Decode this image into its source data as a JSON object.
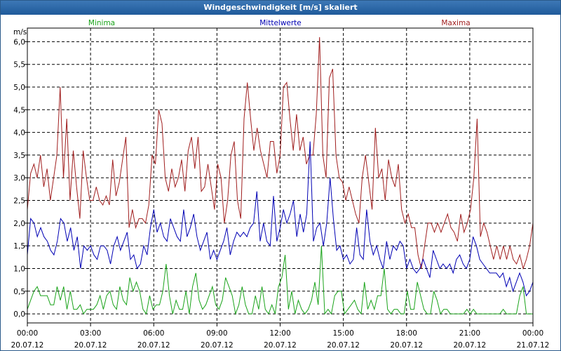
{
  "window": {
    "title": "Windgeschwindigkeit [m/s] skaliert"
  },
  "colors": {
    "minima": "#1aa31a",
    "mittelwerte": "#0000b4",
    "maxima": "#a01e1e",
    "grid": "#000000",
    "titlebar": "#2b68a8"
  },
  "chart_data": {
    "type": "line",
    "title": "Windgeschwindigkeit [m/s] skaliert",
    "ylabel": "m/s",
    "xlabel": "",
    "ylim": [
      -0.2,
      6.3
    ],
    "xlim": [
      0,
      24
    ],
    "grid": true,
    "yticks": [
      {
        "value": 0.0,
        "label": "0,0"
      },
      {
        "value": 0.5,
        "label": "0,5"
      },
      {
        "value": 1.0,
        "label": "1,0"
      },
      {
        "value": 1.5,
        "label": "1,5"
      },
      {
        "value": 2.0,
        "label": "2,0"
      },
      {
        "value": 2.5,
        "label": "2,5"
      },
      {
        "value": 3.0,
        "label": "3,0"
      },
      {
        "value": 3.5,
        "label": "3,5"
      },
      {
        "value": 4.0,
        "label": "4,0"
      },
      {
        "value": 4.5,
        "label": "4,5"
      },
      {
        "value": 5.0,
        "label": "5,0"
      },
      {
        "value": 5.5,
        "label": "5,5"
      },
      {
        "value": 6.0,
        "label": "6,0"
      }
    ],
    "xticks": [
      {
        "value": 0,
        "time": "00:00",
        "date": "20.07.12"
      },
      {
        "value": 3,
        "time": "03:00",
        "date": "20.07.12"
      },
      {
        "value": 6,
        "time": "06:00",
        "date": "20.07.12"
      },
      {
        "value": 9,
        "time": "09:00",
        "date": "20.07.12"
      },
      {
        "value": 12,
        "time": "12:00",
        "date": "20.07.12"
      },
      {
        "value": 15,
        "time": "15:00",
        "date": "20.07.12"
      },
      {
        "value": 18,
        "time": "18:00",
        "date": "20.07.12"
      },
      {
        "value": 21,
        "time": "21:00",
        "date": "20.07.12"
      },
      {
        "value": 24,
        "time": "00:00",
        "date": "21.07.12"
      }
    ],
    "legend": [
      {
        "key": "minima",
        "label": "Minima"
      },
      {
        "key": "mittelwerte",
        "label": "Mittelwerte"
      },
      {
        "key": "maxima",
        "label": "Maxima"
      }
    ],
    "x_step_hours": 0.1667,
    "series": [
      {
        "key": "maxima",
        "name": "Maxima",
        "values": [
          2.3,
          3.1,
          3.3,
          3.0,
          3.5,
          2.8,
          3.2,
          2.5,
          3.0,
          3.5,
          5.0,
          3.0,
          4.3,
          2.5,
          3.6,
          2.8,
          2.1,
          3.6,
          3.0,
          2.5,
          2.5,
          2.8,
          2.5,
          2.4,
          2.6,
          2.4,
          3.4,
          2.6,
          2.9,
          3.4,
          3.9,
          1.9,
          2.3,
          1.9,
          2.1,
          2.1,
          2.0,
          2.4,
          3.5,
          3.3,
          4.5,
          4.2,
          3.0,
          2.7,
          3.2,
          2.8,
          3.0,
          3.4,
          2.7,
          3.6,
          3.9,
          3.2,
          3.9,
          2.7,
          2.8,
          3.3,
          2.8,
          2.3,
          3.3,
          3.0,
          2.0,
          2.5,
          3.5,
          3.8,
          2.5,
          2.1,
          4.3,
          5.1,
          4.3,
          3.6,
          4.1,
          3.6,
          3.3,
          3.0,
          3.8,
          3.8,
          3.1,
          3.5,
          5.0,
          5.1,
          4.3,
          3.6,
          4.4,
          3.6,
          3.9,
          3.3,
          3.5,
          3.5,
          4.4,
          6.1,
          3.5,
          3.0,
          5.2,
          5.4,
          3.5,
          3.0,
          2.9,
          2.5,
          2.8,
          2.5,
          2.2,
          2.0,
          3.0,
          3.5,
          2.9,
          2.3,
          4.1,
          3.0,
          3.2,
          2.5,
          3.4,
          3.0,
          2.8,
          3.3,
          2.3,
          2.0,
          2.2,
          1.9,
          1.9,
          1.3,
          1.0,
          1.5,
          2.0,
          2.0,
          1.8,
          2.0,
          1.8,
          2.0,
          2.2,
          1.9,
          1.8,
          1.6,
          2.2,
          1.8,
          2.0,
          2.3,
          3.0,
          4.3,
          1.7,
          2.0,
          1.8,
          1.5,
          1.2,
          1.5,
          1.2,
          1.5,
          1.2,
          1.5,
          1.2,
          1.1,
          1.3,
          1.0,
          1.2,
          1.5,
          2.0
        ]
      },
      {
        "key": "mittelwerte",
        "name": "Mittelwerte",
        "values": [
          1.3,
          2.1,
          2.0,
          1.7,
          1.9,
          1.7,
          1.6,
          1.4,
          1.3,
          1.6,
          2.1,
          2.0,
          1.6,
          1.9,
          1.4,
          1.7,
          1.0,
          1.5,
          1.4,
          1.5,
          1.3,
          1.2,
          1.5,
          1.5,
          1.4,
          1.1,
          1.5,
          1.7,
          1.4,
          1.6,
          1.8,
          1.2,
          1.3,
          1.0,
          1.1,
          1.5,
          1.3,
          1.9,
          2.3,
          1.8,
          2.0,
          1.7,
          1.6,
          2.1,
          1.9,
          1.7,
          1.6,
          2.3,
          1.7,
          1.9,
          2.2,
          1.7,
          1.4,
          1.6,
          1.8,
          1.2,
          1.4,
          1.2,
          1.4,
          1.6,
          1.9,
          1.3,
          1.6,
          1.8,
          1.7,
          1.8,
          1.7,
          1.9,
          2.0,
          2.7,
          1.6,
          2.0,
          1.6,
          1.5,
          2.6,
          1.6,
          1.9,
          2.3,
          2.0,
          2.2,
          2.5,
          1.7,
          2.2,
          1.8,
          2.2,
          3.8,
          1.6,
          1.9,
          2.0,
          1.5,
          2.0,
          3.0,
          2.1,
          1.4,
          1.5,
          1.2,
          1.3,
          1.1,
          1.2,
          1.9,
          1.3,
          1.2,
          2.3,
          1.6,
          1.3,
          1.5,
          1.2,
          1.0,
          1.6,
          1.2,
          1.5,
          1.4,
          1.6,
          1.5,
          1.0,
          1.2,
          1.0,
          0.9,
          1.0,
          1.2,
          1.0,
          0.8,
          1.4,
          1.2,
          1.0,
          1.1,
          1.0,
          1.1,
          0.9,
          1.2,
          1.3,
          1.1,
          1.0,
          1.2,
          1.7,
          1.5,
          1.2,
          1.1,
          1.0,
          0.9,
          0.9,
          0.9,
          0.8,
          0.9,
          0.6,
          0.8,
          0.5,
          0.7,
          0.9,
          0.7,
          0.4,
          0.5,
          0.7
        ]
      },
      {
        "key": "minima",
        "name": "Minima",
        "values": [
          0.1,
          0.3,
          0.5,
          0.6,
          0.4,
          0.4,
          0.4,
          0.2,
          0.2,
          0.6,
          0.3,
          0.6,
          0.1,
          0.5,
          0.1,
          0.1,
          0.2,
          0.0,
          0.1,
          0.1,
          0.1,
          0.2,
          0.4,
          0.1,
          0.4,
          0.5,
          0.2,
          0.1,
          0.6,
          0.3,
          0.2,
          0.8,
          0.5,
          0.7,
          0.5,
          0.1,
          0.0,
          0.4,
          0.1,
          0.2,
          0.2,
          0.5,
          1.1,
          0.4,
          0.0,
          0.3,
          0.1,
          0.1,
          0.5,
          0.0,
          0.6,
          0.9,
          0.3,
          0.1,
          0.2,
          0.4,
          0.6,
          0.2,
          0.1,
          0.3,
          0.8,
          0.6,
          0.4,
          0.0,
          0.2,
          0.6,
          0.2,
          0.0,
          0.0,
          0.4,
          0.1,
          0.6,
          0.1,
          0.0,
          0.2,
          0.0,
          0.6,
          0.8,
          1.3,
          0.1,
          0.5,
          0.0,
          0.3,
          0.1,
          0.0,
          0.1,
          0.3,
          0.7,
          0.2,
          1.5,
          0.0,
          0.1,
          0.0,
          0.4,
          0.5,
          0.5,
          0.0,
          0.1,
          0.2,
          0.3,
          0.1,
          0.0,
          0.7,
          0.1,
          0.3,
          0.1,
          0.4,
          0.4,
          1.0,
          0.1,
          0.0,
          0.1,
          0.1,
          0.0,
          0.0,
          0.5,
          0.1,
          0.1,
          0.7,
          0.4,
          0.1,
          0.0,
          0.0,
          0.5,
          0.3,
          0.0,
          0.1,
          0.1,
          0.0,
          0.0,
          0.0,
          0.0,
          0.0,
          0.1,
          0.0,
          0.1,
          0.0,
          0.0,
          0.0,
          0.0,
          0.0,
          0.0,
          0.0,
          0.0,
          0.1,
          0.0,
          0.0,
          0.0,
          0.0,
          0.4,
          0.6,
          0.0,
          0.0,
          0.0
        ]
      }
    ]
  }
}
